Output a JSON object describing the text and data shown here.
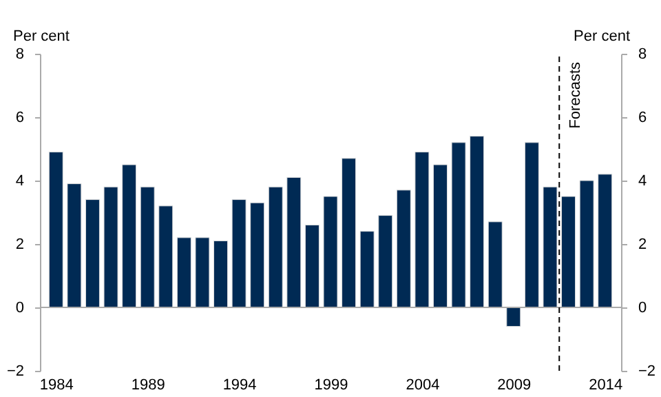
{
  "chart_data": {
    "type": "bar",
    "ylabel": "Per cent",
    "y2label": "Per cent",
    "x": [
      1984,
      1985,
      1986,
      1987,
      1988,
      1989,
      1990,
      1991,
      1992,
      1993,
      1994,
      1995,
      1996,
      1997,
      1998,
      1999,
      2000,
      2001,
      2002,
      2003,
      2004,
      2005,
      2006,
      2007,
      2008,
      2009,
      2010,
      2011,
      2012,
      2013,
      2014
    ],
    "series": [
      {
        "color": "#002a54",
        "values": [
          4.9,
          3.9,
          3.4,
          3.8,
          4.5,
          3.8,
          3.2,
          2.2,
          2.2,
          2.1,
          3.4,
          3.3,
          3.8,
          4.1,
          2.6,
          3.5,
          4.7,
          2.4,
          2.9,
          3.7,
          4.9,
          4.5,
          5.2,
          5.4,
          2.7,
          -0.6,
          5.2,
          3.8,
          3.5,
          4.0,
          4.2
        ]
      }
    ],
    "xlim": [
      1983.5,
      2014.5
    ],
    "xticks": [
      1984,
      1989,
      1994,
      1999,
      2004,
      2009,
      2014
    ],
    "ylim": [
      -2,
      8
    ],
    "yticks": [
      -2,
      0,
      2,
      4,
      6,
      8
    ],
    "y2lim": [
      -2,
      8
    ],
    "y2ticks": [
      -2,
      0,
      2,
      4,
      6,
      8
    ],
    "ref_lines": [
      {
        "axis": "x",
        "value": 2011.5,
        "label": "Forecasts",
        "line_style": "dashed"
      }
    ]
  }
}
